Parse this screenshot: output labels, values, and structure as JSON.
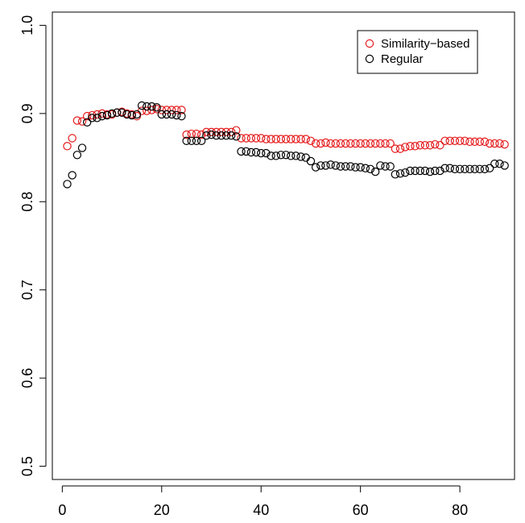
{
  "chart_data": {
    "type": "scatter",
    "title": "",
    "xlabel": "",
    "ylabel": "",
    "xlim": [
      -2,
      91
    ],
    "ylim": [
      0.485,
      1.015
    ],
    "grid": false,
    "legend_position": "top-right",
    "x_ticks": [
      0,
      20,
      40,
      60,
      80
    ],
    "x_tick_labels": [
      "0",
      "20",
      "40",
      "60",
      "80"
    ],
    "y_ticks": [
      0.5,
      0.6,
      0.7,
      0.8,
      0.9,
      1.0
    ],
    "y_tick_labels": [
      "0.5",
      "0.6",
      "0.7",
      "0.8",
      "0.9",
      "1.0"
    ],
    "x": [
      1,
      2,
      3,
      4,
      5,
      6,
      7,
      8,
      9,
      10,
      11,
      12,
      13,
      14,
      15,
      16,
      17,
      18,
      19,
      20,
      21,
      22,
      23,
      24,
      25,
      26,
      27,
      28,
      29,
      30,
      31,
      32,
      33,
      34,
      35,
      36,
      37,
      38,
      39,
      40,
      41,
      42,
      43,
      44,
      45,
      46,
      47,
      48,
      49,
      50,
      51,
      52,
      53,
      54,
      55,
      56,
      57,
      58,
      59,
      60,
      61,
      62,
      63,
      64,
      65,
      66,
      67,
      68,
      69,
      70,
      71,
      72,
      73,
      74,
      75,
      76,
      77,
      78,
      79,
      80,
      81,
      82,
      83,
      84,
      85,
      86,
      87,
      88,
      89
    ],
    "series": [
      {
        "name": "Similarity−based",
        "color": "#e41a1c",
        "values": [
          0.863,
          0.872,
          0.892,
          0.891,
          0.897,
          0.898,
          0.899,
          0.9,
          0.899,
          0.899,
          0.901,
          0.902,
          0.9,
          0.899,
          0.897,
          0.903,
          0.903,
          0.904,
          0.905,
          0.904,
          0.904,
          0.904,
          0.904,
          0.904,
          0.876,
          0.877,
          0.877,
          0.876,
          0.879,
          0.879,
          0.879,
          0.879,
          0.879,
          0.879,
          0.881,
          0.872,
          0.872,
          0.872,
          0.872,
          0.872,
          0.871,
          0.871,
          0.871,
          0.871,
          0.871,
          0.871,
          0.871,
          0.871,
          0.871,
          0.869,
          0.866,
          0.866,
          0.867,
          0.866,
          0.866,
          0.866,
          0.866,
          0.866,
          0.866,
          0.866,
          0.866,
          0.866,
          0.866,
          0.866,
          0.866,
          0.866,
          0.86,
          0.86,
          0.862,
          0.863,
          0.863,
          0.864,
          0.864,
          0.864,
          0.865,
          0.864,
          0.869,
          0.869,
          0.869,
          0.869,
          0.869,
          0.868,
          0.868,
          0.868,
          0.868,
          0.866,
          0.866,
          0.866,
          0.865
        ]
      },
      {
        "name": "Regular",
        "color": "#000000",
        "values": [
          0.82,
          0.83,
          0.853,
          0.861,
          0.89,
          0.895,
          0.895,
          0.897,
          0.898,
          0.9,
          0.901,
          0.901,
          0.899,
          0.898,
          0.899,
          0.909,
          0.908,
          0.908,
          0.907,
          0.899,
          0.899,
          0.899,
          0.898,
          0.897,
          0.869,
          0.869,
          0.869,
          0.869,
          0.875,
          0.876,
          0.875,
          0.875,
          0.875,
          0.875,
          0.874,
          0.857,
          0.857,
          0.856,
          0.856,
          0.855,
          0.855,
          0.852,
          0.852,
          0.853,
          0.853,
          0.852,
          0.852,
          0.851,
          0.85,
          0.846,
          0.839,
          0.841,
          0.841,
          0.842,
          0.841,
          0.84,
          0.84,
          0.84,
          0.839,
          0.839,
          0.838,
          0.837,
          0.834,
          0.841,
          0.84,
          0.84,
          0.831,
          0.832,
          0.833,
          0.835,
          0.835,
          0.835,
          0.835,
          0.834,
          0.835,
          0.835,
          0.838,
          0.838,
          0.837,
          0.837,
          0.837,
          0.837,
          0.837,
          0.837,
          0.837,
          0.838,
          0.843,
          0.843,
          0.841
        ]
      }
    ]
  }
}
